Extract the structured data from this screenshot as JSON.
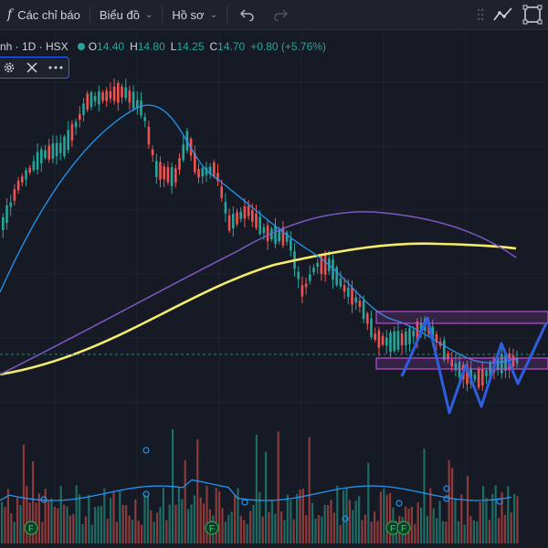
{
  "toolbar": {
    "fx_glyph": "f",
    "indicators_label": "Các chỉ báo",
    "chart_label": "Biểu đồ",
    "profile_label": "Hồ sơ",
    "undo_icon": "undo-icon",
    "redo_icon": "redo-icon"
  },
  "legend": {
    "symbol": "nh · 1D · HSX",
    "o_key": "O",
    "o_val": "14.40",
    "h_key": "H",
    "h_val": "14.80",
    "l_key": "L",
    "l_val": "14.25",
    "c_key": "C",
    "c_val": "14.70",
    "change": "+0.80 (+5.76%)"
  },
  "indicator_controls": {
    "settings_icon": "gear-icon",
    "close_icon": "close-icon",
    "more_icon": "more-icon"
  },
  "markers": {
    "label": "F"
  },
  "colors": {
    "background": "#161a25",
    "up": "#26a69a",
    "down": "#ef5350",
    "ma_fast": "#2196f3",
    "ma_mid": "#7e57c2",
    "ma_slow": "#f5ec6e",
    "zone": "#c04bd6",
    "pattern": "#2f5fe0"
  }
}
